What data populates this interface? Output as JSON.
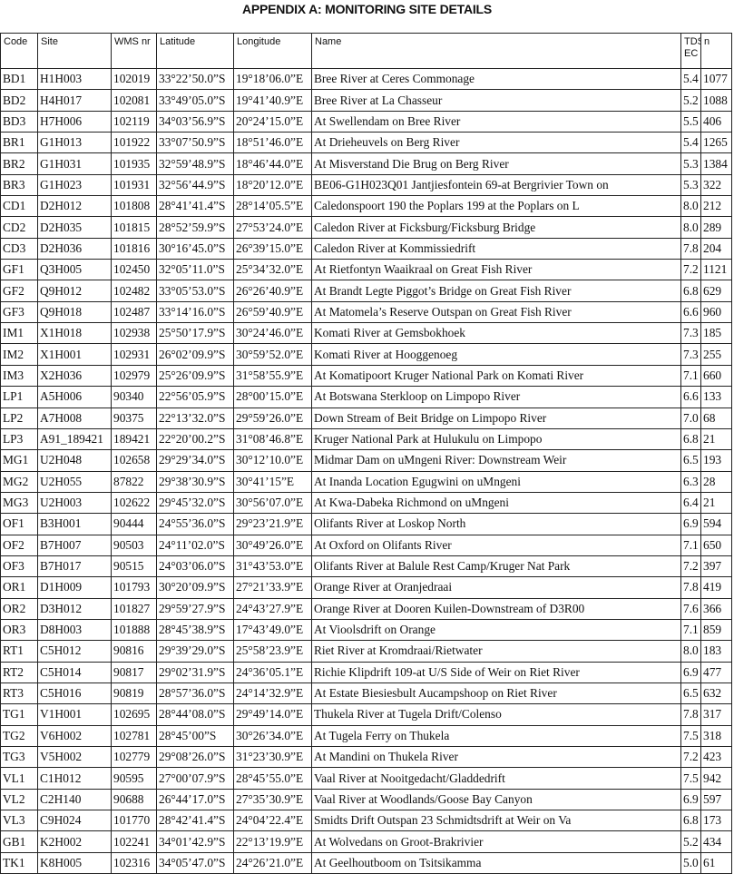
{
  "title": "APPENDIX A: MONITORING SITE DETAILS",
  "columns": [
    "Code",
    "Site",
    "WMS nr",
    "Latitude",
    "Longitude",
    "Name",
    "TDS: EC",
    "n"
  ],
  "rows": [
    [
      "BD1",
      "H1H003",
      "102019",
      "33°22’50.0”S",
      "19°18’06.0”E",
      "Bree River at Ceres Commonage",
      "5.4",
      "1077"
    ],
    [
      "BD2",
      "H4H017",
      "102081",
      "33°49’05.0”S",
      "19°41’40.9”E",
      "Bree River at La Chasseur",
      "5.2",
      "1088"
    ],
    [
      "BD3",
      "H7H006",
      "102119",
      "34°03’56.9”S",
      "20°24’15.0”E",
      "At Swellendam on Bree River",
      "5.5",
      "406"
    ],
    [
      "BR1",
      "G1H013",
      "101922",
      "33°07’50.9”S",
      "18°51’46.0”E",
      "At Drieheuvels on Berg River",
      "5.4",
      "1265"
    ],
    [
      "BR2",
      "G1H031",
      "101935",
      "32°59’48.9”S",
      "18°46’44.0”E",
      "At Misverstand Die Brug on Berg River",
      "5.3",
      "1384"
    ],
    [
      "BR3",
      "G1H023",
      "101931",
      "32°56’44.9”S",
      "18°20’12.0”E",
      "BE06-G1H023Q01 Jantjiesfontein 69-at Bergrivier Town on",
      "5.3",
      "322"
    ],
    [
      "CD1",
      "D2H012",
      "101808",
      "28°41’41.4”S",
      "28°14’05.5”E",
      "Caledonspoort 190 the Poplars 199 at the Poplars on L",
      "8.0",
      "212"
    ],
    [
      "CD2",
      "D2H035",
      "101815",
      "28°52’59.9”S",
      "27°53’24.0”E",
      "Caledon River at Ficksburg/Ficksburg Bridge",
      "8.0",
      "289"
    ],
    [
      "CD3",
      "D2H036",
      "101816",
      "30°16’45.0”S",
      "26°39’15.0”E",
      "Caledon River at Kommissiedrift",
      "7.8",
      "204"
    ],
    [
      "GF1",
      "Q3H005",
      "102450",
      "32°05’11.0”S",
      "25°34’32.0”E",
      "At Rietfontyn Waaikraal on Great Fish River",
      "7.2",
      "1121"
    ],
    [
      "GF2",
      "Q9H012",
      "102482",
      "33°05’53.0”S",
      "26°26’40.9”E",
      "At Brandt Legte Piggot’s Bridge on Great Fish River",
      "6.8",
      "629"
    ],
    [
      "GF3",
      "Q9H018",
      "102487",
      "33°14’16.0”S",
      "26°59’40.9”E",
      "At Matomela’s Reserve Outspan on Great Fish River",
      "6.6",
      "960"
    ],
    [
      "IM1",
      "X1H018",
      "102938",
      "25°50’17.9”S",
      "30°24’46.0”E",
      "Komati River at Gemsbokhoek",
      "7.3",
      "185"
    ],
    [
      "IM2",
      "X1H001",
      "102931",
      "26°02’09.9”S",
      "30°59’52.0”E",
      "Komati River at Hooggenoeg",
      "7.3",
      "255"
    ],
    [
      "IM3",
      "X2H036",
      "102979",
      "25°26’09.9”S",
      "31°58’55.9”E",
      "At Komatipoort Kruger National Park on Komati River",
      "7.1",
      "660"
    ],
    [
      "LP1",
      "A5H006",
      "90340",
      "22°56’05.9”S",
      "28°00’15.0”E",
      "At Botswana Sterkloop on Limpopo River",
      "6.6",
      "133"
    ],
    [
      "LP2",
      "A7H008",
      "90375",
      "22°13’32.0”S",
      "29°59’26.0”E",
      "Down Stream of Beit Bridge on Limpopo River",
      "7.0",
      "68"
    ],
    [
      "LP3",
      "A91_189421",
      "189421",
      "22°20’00.2”S",
      "31°08’46.8”E",
      "Kruger National Park at Hulukulu on Limpopo",
      "6.8",
      "21"
    ],
    [
      "MG1",
      "U2H048",
      "102658",
      "29°29’34.0”S",
      "30°12’10.0”E",
      "Midmar Dam on uMngeni River: Downstream Weir",
      "6.5",
      "193"
    ],
    [
      "MG2",
      "U2H055",
      "87822",
      "29°38’30.9”S",
      "30°41’15”E",
      "At Inanda Location Egugwini on uMngeni",
      "6.3",
      "28"
    ],
    [
      "MG3",
      "U2H003",
      "102622",
      "29°45’32.0”S",
      "30°56’07.0”E",
      "At Kwa-Dabeka Richmond on uMngeni",
      "6.4",
      "21"
    ],
    [
      "OF1",
      "B3H001",
      "90444",
      "24°55’36.0”S",
      "29°23’21.9”E",
      "Olifants River at Loskop North",
      "6.9",
      "594"
    ],
    [
      "OF2",
      "B7H007",
      "90503",
      "24°11’02.0”S",
      "30°49’26.0”E",
      "At Oxford on Olifants River",
      "7.1",
      "650"
    ],
    [
      "OF3",
      "B7H017",
      "90515",
      "24°03’06.0”S",
      "31°43’53.0”E",
      "Olifants River at Balule Rest Camp/Kruger Nat Park",
      "7.2",
      "397"
    ],
    [
      "OR1",
      "D1H009",
      "101793",
      "30°20’09.9”S",
      "27°21’33.9”E",
      "Orange River at Oranjedraai",
      "7.8",
      "419"
    ],
    [
      "OR2",
      "D3H012",
      "101827",
      "29°59’27.9”S",
      "24°43’27.9”E",
      "Orange River at Dooren Kuilen-Downstream of D3R00",
      "7.6",
      "366"
    ],
    [
      "OR3",
      "D8H003",
      "101888",
      "28°45’38.9”S",
      "17°43’49.0”E",
      "At Vioolsdrift on Orange",
      "7.1",
      "859"
    ],
    [
      "RT1",
      "C5H012",
      "90816",
      "29°39’29.0”S",
      "25°58’23.9”E",
      "Riet River at Kromdraai/Rietwater",
      "8.0",
      "183"
    ],
    [
      "RT2",
      "C5H014",
      "90817",
      "29°02’31.9”S",
      "24°36’05.1”E",
      "Richie Klipdrift 109-at U/S Side of Weir on Riet River",
      "6.9",
      "477"
    ],
    [
      "RT3",
      "C5H016",
      "90819",
      "28°57’36.0”S",
      "24°14’32.9”E",
      "At Estate Biesiesbult Aucampshoop on Riet River",
      "6.5",
      "632"
    ],
    [
      "TG1",
      "V1H001",
      "102695",
      "28°44’08.0”S",
      "29°49’14.0”E",
      "Thukela River at Tugela Drift/Colenso",
      "7.8",
      "317"
    ],
    [
      "TG2",
      "V6H002",
      "102781",
      "28°45’00”S",
      "30°26’34.0”E",
      "At Tugela Ferry on Thukela",
      "7.5",
      "318"
    ],
    [
      "TG3",
      "V5H002",
      "102779",
      "29°08’26.0”S",
      "31°23’30.9”E",
      "At Mandini on Thukela River",
      "7.2",
      "423"
    ],
    [
      "VL1",
      "C1H012",
      "90595",
      "27°00’07.9”S",
      "28°45’55.0”E",
      "Vaal River at Nooitgedacht/Gladdedrift",
      "7.5",
      "942"
    ],
    [
      "VL2",
      "C2H140",
      "90688",
      "26°44’17.0”S",
      "27°35’30.9”E",
      "Vaal River at Woodlands/Goose Bay Canyon",
      "6.9",
      "597"
    ],
    [
      "VL3",
      "C9H024",
      "101770",
      "28°42’41.4”S",
      "24°04’22.4”E",
      "Smidts Drift Outspan 23 Schmidtsdrift at Weir on Va",
      "6.8",
      "173"
    ],
    [
      "GB1",
      "K2H002",
      "102241",
      "34°01’42.9”S",
      "22°13’19.9”E",
      "At Wolvedans on Groot-Brakrivier",
      "5.2",
      "434"
    ],
    [
      "TK1",
      "K8H005",
      "102316",
      "34°05’47.0”S",
      "24°26’21.0”E",
      "At Geelhoutboom on Tsitsikamma",
      "5.0",
      "61"
    ]
  ]
}
